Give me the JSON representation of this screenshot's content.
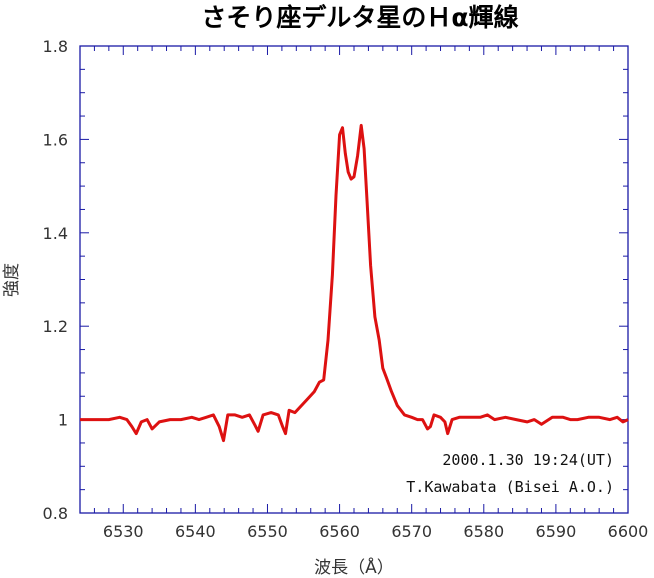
{
  "chart_data": {
    "type": "line",
    "title": "さそり座デルタ星のＨα輝線",
    "xlabel": "波長（Å）",
    "ylabel": "強度",
    "xlim": [
      6524,
      6600
    ],
    "ylim": [
      0.8,
      1.8
    ],
    "xticks": [
      "6530",
      "6540",
      "6550",
      "6560",
      "6570",
      "6580",
      "6590",
      "6600"
    ],
    "yticks": [
      "0.8",
      "1",
      "1.2",
      "1.4",
      "1.6",
      "1.8"
    ],
    "grid": false,
    "line_color": "#dd1111",
    "frame_color": "#1a1aa6",
    "annotations": [
      "2000.1.30 19:24(UT)",
      "T.Kawabata (Bisei A.O.)"
    ],
    "series": [
      {
        "x": [
          6524,
          6526,
          6528,
          6529.5,
          6530.5,
          6531.2,
          6531.8,
          6532.5,
          6533.3,
          6534,
          6535,
          6536.5,
          6538,
          6539.5,
          6540.5,
          6541.5,
          6542.5,
          6543.3,
          6543.9,
          6544.5,
          6545.5,
          6546.5,
          6547.5,
          6548.2,
          6548.7,
          6549.4,
          6550.5,
          6551.5,
          6552.1,
          6552.5,
          6553,
          6553.8,
          6554.7,
          6555.6,
          6556.5,
          6557.2,
          6557.8,
          6558.4,
          6559,
          6559.5,
          6560,
          6560.4,
          6560.8,
          6561.2,
          6561.6,
          6562,
          6562.5,
          6563,
          6563.4,
          6563.8,
          6564.3,
          6564.9,
          6565.5,
          6566,
          6566.5,
          6567.2,
          6568,
          6569,
          6570,
          6570.8,
          6571.5,
          6572.2,
          6572.6,
          6573.1,
          6574,
          6574.6,
          6575,
          6575.6,
          6576.6,
          6578,
          6579.5,
          6580.5,
          6581.5,
          6583,
          6584.5,
          6586,
          6587,
          6588,
          6589.5,
          6591,
          6592,
          6593,
          6594.5,
          6596,
          6597.5,
          6598.5,
          6599.3,
          6600
        ],
        "y": [
          1.0,
          1.0,
          1.0,
          1.005,
          1.0,
          0.985,
          0.97,
          0.995,
          1.0,
          0.98,
          0.995,
          1.0,
          1.0,
          1.005,
          1.0,
          1.005,
          1.01,
          0.985,
          0.955,
          1.01,
          1.01,
          1.005,
          1.01,
          0.99,
          0.975,
          1.01,
          1.015,
          1.01,
          0.985,
          0.97,
          1.02,
          1.015,
          1.03,
          1.045,
          1.06,
          1.08,
          1.085,
          1.17,
          1.31,
          1.48,
          1.61,
          1.625,
          1.57,
          1.53,
          1.515,
          1.52,
          1.565,
          1.63,
          1.58,
          1.47,
          1.33,
          1.22,
          1.17,
          1.11,
          1.09,
          1.06,
          1.03,
          1.01,
          1.005,
          1.0,
          1.0,
          0.98,
          0.985,
          1.01,
          1.005,
          0.995,
          0.97,
          1.0,
          1.005,
          1.005,
          1.005,
          1.01,
          1.0,
          1.005,
          1.0,
          0.995,
          1.0,
          0.99,
          1.005,
          1.005,
          1.0,
          1.0,
          1.005,
          1.005,
          1.0,
          1.005,
          0.995,
          1.0
        ]
      }
    ]
  }
}
